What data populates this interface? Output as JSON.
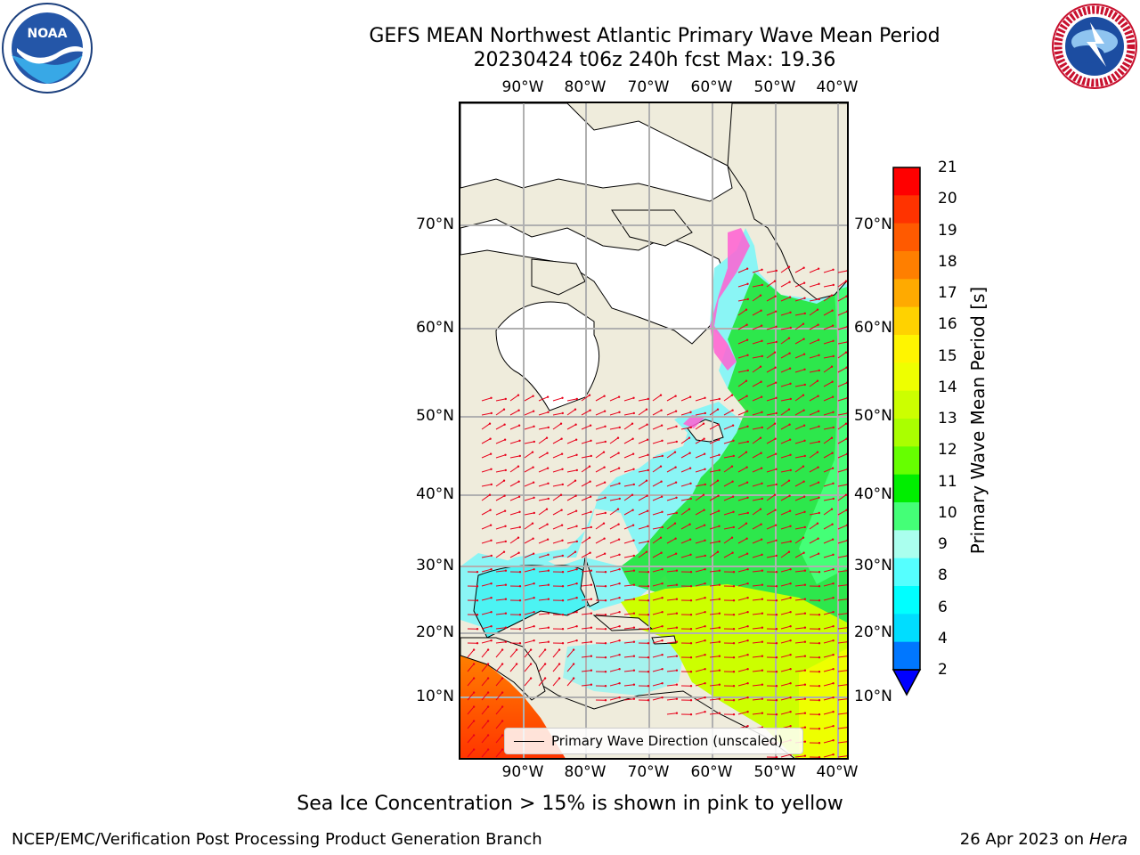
{
  "header": {
    "title_line1": "GEFS MEAN Northwest Atlantic Primary Wave Mean Period",
    "title_line2": "20230424 t06z 240h fcst   Max: 19.36"
  },
  "logos": {
    "noaa_text": "NOAA",
    "noaa_ring_text": "NATIONAL OCEANIC AND ATMOSPHERIC ADMINISTRATION · U.S. DEPARTMENT OF COMMERCE",
    "nws_ring_text": "NATIONAL WEATHER SERVICE"
  },
  "map": {
    "lon_labels_top": [
      "90°W",
      "80°W",
      "70°W",
      "60°W",
      "50°W",
      "40°W"
    ],
    "lon_labels_bottom": [
      "90°W",
      "80°W",
      "70°W",
      "60°W",
      "50°W",
      "40°W"
    ],
    "lat_labels_left": [
      "70°N",
      "60°N",
      "50°N",
      "40°N",
      "30°N",
      "20°N",
      "10°N"
    ],
    "lat_labels_right": [
      "70°N",
      "60°N",
      "50°N",
      "40°N",
      "30°N",
      "20°N",
      "10°N"
    ],
    "legend_label": "Primary Wave Direction (unscaled)",
    "colors": {
      "land": "#efecdc",
      "grid": "#b0b0b0",
      "arrow": "#e8001a",
      "ice_pink": "#ff5fd2"
    }
  },
  "colorbar": {
    "label": "Primary Wave Mean Period [s]",
    "ticks": [
      "21",
      "20",
      "19",
      "18",
      "17",
      "16",
      "15",
      "14",
      "13",
      "12",
      "11",
      "10",
      "9",
      "8",
      "6",
      "4",
      "2"
    ],
    "colors": [
      "#ff0000",
      "#ff3300",
      "#ff5a00",
      "#ff7f00",
      "#ffaa00",
      "#ffd200",
      "#fff500",
      "#eeff00",
      "#ccff00",
      "#aaff00",
      "#66ff00",
      "#00ee00",
      "#44ff77",
      "#aaffee",
      "#55ffff",
      "#00ffff",
      "#00ddff",
      "#0077ff",
      "#0000ff"
    ]
  },
  "footer": {
    "note": "Sea Ice Concentration > 15% is shown in pink to yellow",
    "left": "NCEP/EMC/Verification Post Processing Product Generation Branch",
    "right_prefix": "26 Apr 2023 on ",
    "right_italic": "Hera"
  }
}
